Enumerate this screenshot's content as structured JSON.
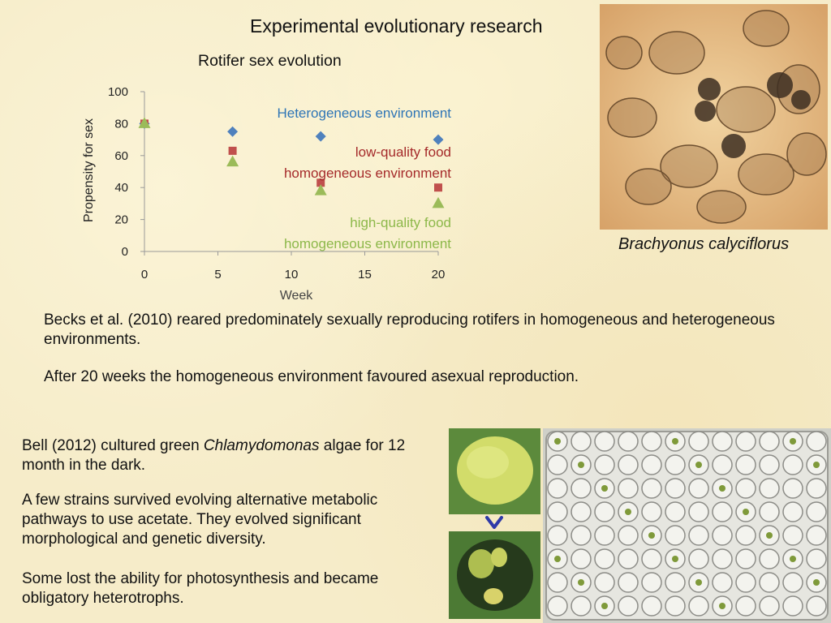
{
  "slide": {
    "title": "Experimental evolutionary research",
    "photo_caption": "Brachyonus calyciflorus",
    "paragraph1": "Becks et al. (2010) reared predominately sexually reproducing rotifers in homogeneous and heterogeneous environments.",
    "paragraph2": "After 20 weeks the homogeneous environment favoured asexual reproduction.",
    "paragraph3_before": "Bell (2012) cultured green ",
    "paragraph3_italic": "Chlamydomonas",
    "paragraph3_after": " algae for 12 month in the dark.",
    "paragraph4": "A few strains survived evolving alternative metabolic pathways to use acetate. They evolved significant morphological and genetic diversity.",
    "paragraph5": "Some lost the ability for photosynthesis and became obligatory heterotrophs."
  },
  "icons": {
    "arrow": "arrow-down-icon"
  },
  "chart_data": {
    "type": "scatter",
    "title": "Rotifer sex evolution",
    "xlabel": "Week",
    "ylabel": "Propensity for sex",
    "xlim": [
      0,
      20
    ],
    "ylim": [
      0,
      100
    ],
    "xticks": [
      0,
      5,
      10,
      15,
      20
    ],
    "yticks": [
      0,
      20,
      40,
      60,
      80,
      100
    ],
    "grid": false,
    "series": [
      {
        "name_lines": [
          "Heterogeneous environment"
        ],
        "marker": "diamond",
        "color": "#4f81bd",
        "label_color": "#2e75b6",
        "x": [
          0,
          6,
          12,
          20
        ],
        "y": [
          80,
          75,
          72,
          70
        ]
      },
      {
        "name_lines": [
          "low-quality food",
          "homogeneous environment"
        ],
        "marker": "square",
        "color": "#c0504d",
        "label_color": "#a52a2a",
        "x": [
          0,
          6,
          12,
          20
        ],
        "y": [
          80,
          63,
          43,
          40
        ]
      },
      {
        "name_lines": [
          "high-quality food",
          "homogeneous environment"
        ],
        "marker": "triangle",
        "color": "#9bbb59",
        "label_color": "#8db84a",
        "x": [
          0,
          6,
          12,
          20
        ],
        "y": [
          80,
          56,
          38,
          30
        ]
      }
    ]
  }
}
